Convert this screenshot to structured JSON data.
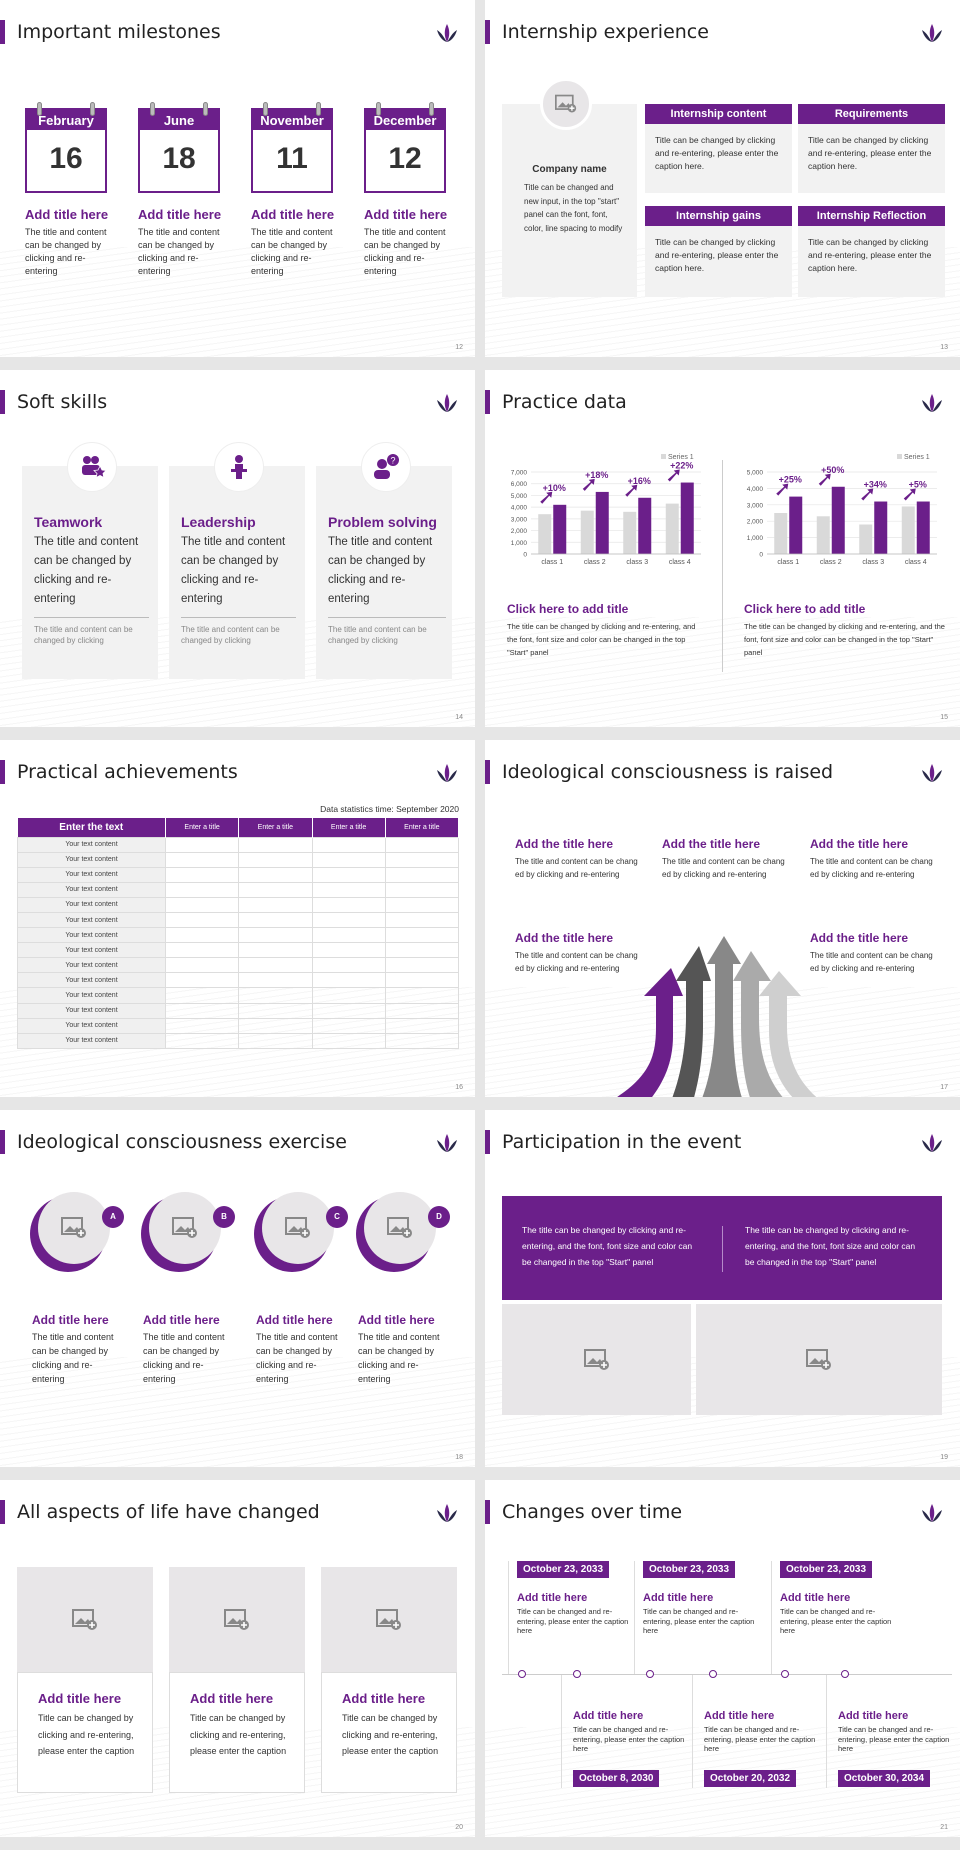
{
  "slides": {
    "s12": {
      "title": "Important milestones",
      "page": "12",
      "items": [
        {
          "month": "February",
          "day": "16",
          "title": "Add title here",
          "text": "The title and content can be changed by clicking and re-entering"
        },
        {
          "month": "June",
          "day": "18",
          "title": "Add title here",
          "text": "The title and content can be changed by clicking and re-entering"
        },
        {
          "month": "November",
          "day": "11",
          "title": "Add title here",
          "text": "The title and content can be changed by clicking and re-entering"
        },
        {
          "month": "December",
          "day": "12",
          "title": "Add title here",
          "text": "The title and content can be changed by clicking and re-entering"
        }
      ]
    },
    "s13": {
      "title": "Internship experience",
      "page": "13",
      "company": "Company name",
      "company_text": "Title can be changed and new input, in the top \"start\" panel can the font, font, color, line spacing to modify",
      "boxes": [
        {
          "head": "Internship content",
          "text": "Title can be changed by clicking and re-entering, please enter the caption here."
        },
        {
          "head": "Requirements",
          "text": "Title can be changed by clicking and re-entering, please enter the caption here."
        },
        {
          "head": "Internship gains",
          "text": "Title can be changed by clicking and re-entering, please enter the caption here."
        },
        {
          "head": "Internship Reflection",
          "text": "Title can be changed by clicking and re-entering, please enter the caption here."
        }
      ]
    },
    "s14": {
      "title": "Soft skills",
      "page": "14",
      "cards": [
        {
          "title": "Teamwork",
          "text": "The title and content can be changed by clicking and re-entering",
          "sub": "The title and content can be changed by clicking"
        },
        {
          "title": "Leadership",
          "text": "The title and content can be changed by clicking and re-entering",
          "sub": "The title and content can be changed by clicking"
        },
        {
          "title": "Problem solving",
          "text": "The title and content can be changed by clicking and re-entering",
          "sub": "The title and content can be changed by clicking"
        }
      ]
    },
    "s15": {
      "title": "Practice data",
      "page": "15",
      "left": {
        "title": "Click here to add title",
        "text": "The title can be changed by clicking and re-entering, and the font, font size and color can be changed in the top \"Start\" panel"
      },
      "right": {
        "title": "Click here to add title",
        "text": "The title can be changed by clicking and re-entering, and the font, font size and color can be changed in the top \"Start\" panel"
      }
    },
    "s16": {
      "title": "Practical achievements",
      "page": "16",
      "stat": "Data statistics time: September 2020",
      "headers": [
        "Enter the text",
        "Enter a title",
        "Enter a title",
        "Enter a title",
        "Enter a title"
      ],
      "row_label": "Your text content"
    },
    "s17": {
      "title": "Ideological consciousness is raised",
      "page": "17",
      "items": [
        {
          "title": "Add the title here",
          "text": "The title and content can be chang ed by clicking and re-entering"
        },
        {
          "title": "Add the title here",
          "text": "The title and content can be chang ed by clicking and re-entering"
        },
        {
          "title": "Add the title here",
          "text": "The title and content can be chang ed by clicking and re-entering"
        },
        {
          "title": "Add the title here",
          "text": "The title and content can be chang ed by clicking and re-entering"
        },
        {
          "title": "Add the title here",
          "text": "The title and content can be chang ed by clicking and re-entering"
        }
      ]
    },
    "s18": {
      "title": "Ideological consciousness exercise",
      "page": "18",
      "items": [
        {
          "badge": "A",
          "title": "Add title here",
          "text": "The title and content can be changed by clicking and re-entering"
        },
        {
          "badge": "B",
          "title": "Add title here",
          "text": "The title and content can be changed by clicking and re-entering"
        },
        {
          "badge": "C",
          "title": "Add title here",
          "text": "The title and content can be changed by clicking and re-entering"
        },
        {
          "badge": "D",
          "title": "Add title here",
          "text": "The title and content can be changed by clicking and re-entering"
        }
      ]
    },
    "s19": {
      "title": "Participation in the event",
      "page": "19",
      "left": "The title can be changed by clicking and re-entering, and the font, font size and color can be changed in the top \"Start\" panel",
      "right": "The title can be changed by clicking and re-entering, and the font, font size and color can be changed in the top \"Start\" panel"
    },
    "s20": {
      "title": "All aspects of life have changed",
      "page": "20",
      "items": [
        {
          "title": "Add title here",
          "text": "Title can be changed by clicking and re-entering, please enter the caption"
        },
        {
          "title": "Add title here",
          "text": "Title can be changed by clicking and re-entering, please enter the caption"
        },
        {
          "title": "Add title here",
          "text": "Title can be changed by clicking and re-entering, please enter the caption"
        }
      ]
    },
    "s21": {
      "title": "Changes over time",
      "page": "21",
      "top": [
        {
          "date": "October 23, 2033",
          "title": "Add title here",
          "text": "Title can be changed and re-entering, please enter the caption here"
        },
        {
          "date": "October 23, 2033",
          "title": "Add title here",
          "text": "Title can be changed and re-entering, please enter the caption here"
        },
        {
          "date": "October 23, 2033",
          "title": "Add title here",
          "text": "Title can be changed and re-entering, please enter the caption here"
        }
      ],
      "bottom": [
        {
          "date": "October 8, 2030",
          "title": "Add title here",
          "text": "Title can be changed and re-entering, please enter the caption here"
        },
        {
          "date": "October 20, 2032",
          "title": "Add title here",
          "text": "Title can be changed and re-entering, please enter the caption here"
        },
        {
          "date": "October 30, 2034",
          "title": "Add title here",
          "text": "Title can be changed and re-entering, please enter the caption here"
        }
      ]
    }
  },
  "chart_data": [
    {
      "type": "bar",
      "categories": [
        "class 1",
        "class 2",
        "class 3",
        "class 4"
      ],
      "series": [
        {
          "name": "",
          "values": [
            3400,
            3700,
            3600,
            4300
          ]
        },
        {
          "name": "Series 1",
          "values": [
            4200,
            5300,
            4800,
            6100
          ]
        }
      ],
      "annotations": [
        "+10%",
        "+18%",
        "+16%",
        "+22%"
      ],
      "yticks": [
        "0",
        "1,000",
        "2,000",
        "3,000",
        "4,000",
        "5,000",
        "6,000",
        "7,000"
      ],
      "ylim": [
        0,
        7000
      ],
      "legend": "Series 1",
      "colors": [
        "#d9d9d9",
        "#6b1f8a"
      ]
    },
    {
      "type": "bar",
      "categories": [
        "class 1",
        "class 2",
        "class 3",
        "class 4"
      ],
      "series": [
        {
          "name": "",
          "values": [
            2500,
            2300,
            1800,
            2900
          ]
        },
        {
          "name": "Series 1",
          "values": [
            3500,
            4100,
            3200,
            3200
          ]
        }
      ],
      "annotations": [
        "+25%",
        "+50%",
        "+34%",
        "+5%"
      ],
      "yticks": [
        "0",
        "1,000",
        "2,000",
        "3,000",
        "4,000",
        "5,000"
      ],
      "ylim": [
        0,
        5000
      ],
      "legend": "Series 1",
      "colors": [
        "#d9d9d9",
        "#6b1f8a"
      ]
    }
  ]
}
